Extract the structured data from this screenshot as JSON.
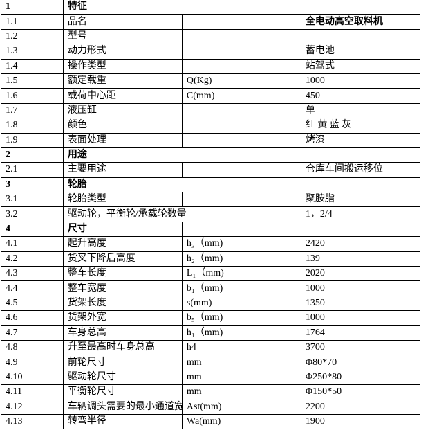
{
  "rows": [
    {
      "type": "section",
      "no": "1",
      "name": "特征",
      "span": 3
    },
    {
      "no": "1.1",
      "name": "品名",
      "unit": "",
      "value": "全电动高空取料机",
      "value_bold": true
    },
    {
      "no": "1.2",
      "name": "型号",
      "unit": "",
      "value": ""
    },
    {
      "no": "1.3",
      "name": "动力形式",
      "unit": "",
      "value": "蓄电池"
    },
    {
      "no": "1.4",
      "name": "操作类型",
      "unit": "",
      "value": "站驾式"
    },
    {
      "no": "1.5",
      "name": "额定载重",
      "unit": "Q(Kg)",
      "value": "1000"
    },
    {
      "no": "1.6",
      "name": "载荷中心距",
      "unit": "C(mm)",
      "value": "450"
    },
    {
      "no": "1.7",
      "name": "液压缸",
      "unit": "",
      "value": "单"
    },
    {
      "no": "1.8",
      "name": "颜色",
      "unit": "",
      "value": "红  黄  蓝  灰"
    },
    {
      "no": "1.9",
      "name": "表面处理",
      "unit": "",
      "value": "烤漆"
    },
    {
      "type": "section",
      "no": "2",
      "name": "用途",
      "span": 3
    },
    {
      "no": "2.1",
      "name": "主要用途",
      "unit": "",
      "value": "仓库车间搬运移位"
    },
    {
      "type": "section",
      "no": "3",
      "name": "轮胎",
      "span": 3
    },
    {
      "no": "3.1",
      "name": "轮胎类型",
      "unit": "",
      "value": "聚胺脂"
    },
    {
      "no": "3.2",
      "name": "驱动轮，平衡轮/承载轮数量",
      "merge": true,
      "value": "1，2/4"
    },
    {
      "type": "section",
      "no": "4",
      "name": "尺寸",
      "span": 1
    },
    {
      "no": "4.1",
      "name": "起升高度",
      "unit": "h₃（mm)",
      "value": "2420"
    },
    {
      "no": "4.2",
      "name": "货叉下降后高度",
      "unit": "h₂（mm)",
      "value": "139"
    },
    {
      "no": "4.3",
      "name": "整车长度",
      "unit": "L₁（mm)",
      "value": "2020"
    },
    {
      "no": "4.4",
      "name": "整车宽度",
      "unit": "b₁（mm)",
      "value": "1000"
    },
    {
      "no": "4.5",
      "name": "货架长度",
      "unit": "s(mm)",
      "value": "1350"
    },
    {
      "no": "4.6",
      "name": "货架外宽",
      "unit": "b₅（mm)",
      "value": "1000"
    },
    {
      "no": "4.7",
      "name": "车身总高",
      "unit": "h₁（mm)",
      "value": "1764"
    },
    {
      "no": "4.8",
      "name": "升至最高时车身总高",
      "unit": "h4",
      "value": "3700"
    },
    {
      "no": "4.9",
      "name": "前轮尺寸",
      "unit": "mm",
      "value": "Φ80*70"
    },
    {
      "no": "4.10",
      "name": "驱动轮尺寸",
      "unit": "mm",
      "value": "Φ250*80"
    },
    {
      "no": "4.11",
      "name": "平衡轮尺寸",
      "unit": "mm",
      "value": "Φ150*50"
    },
    {
      "no": "4.12",
      "name": "车辆调头需要的最小通道宽度",
      "unit": "Ast(mm)",
      "value": "2200"
    },
    {
      "no": "4.13",
      "name": "转弯半径",
      "unit": "Wa(mm)",
      "value": "1900"
    }
  ]
}
